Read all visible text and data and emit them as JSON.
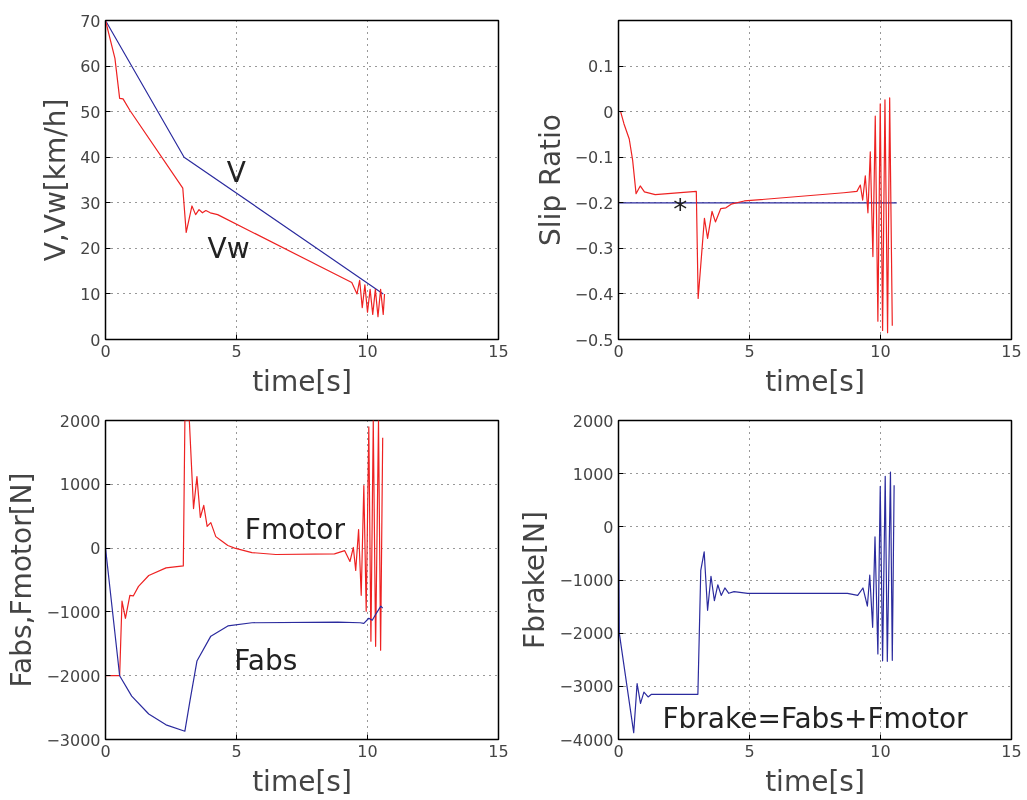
{
  "chart_data": [
    {
      "type": "line",
      "xlabel": "time[s]",
      "ylabel": "V,Vw[km/h]",
      "xlim": [
        0,
        15
      ],
      "xticks": [
        0,
        5,
        10,
        15
      ],
      "ylim": [
        0,
        70
      ],
      "yticks": [
        0,
        10,
        20,
        30,
        40,
        50,
        60,
        70
      ],
      "grid": true,
      "series": [
        {
          "name": "V",
          "color": "#2b2b9e",
          "x": [
            0,
            3,
            10.6
          ],
          "values": [
            70,
            40,
            10
          ]
        },
        {
          "name": "Vw",
          "color": "#ee2222",
          "x": [
            0,
            0.36,
            0.54,
            0.67,
            0.94,
            2.95,
            3.08,
            3.3,
            3.44,
            3.57,
            3.7,
            3.83,
            4.0,
            4.28,
            9.4,
            9.6,
            9.7,
            9.8,
            9.9,
            10.0,
            10.1,
            10.2,
            10.3,
            10.4,
            10.5,
            10.6,
            10.65
          ],
          "values": [
            70,
            61.7,
            52.9,
            52.8,
            50.2,
            33.2,
            23.5,
            29.3,
            27.4,
            28.5,
            27.8,
            28.3,
            27.8,
            27.4,
            12.5,
            10,
            13,
            7,
            12,
            6,
            11,
            5.5,
            11,
            5,
            11,
            5.5,
            10
          ]
        }
      ]
    },
    {
      "type": "line",
      "xlabel": "time[s]",
      "ylabel": "Slip Ratio",
      "xlim": [
        0,
        15
      ],
      "xticks": [
        0,
        5,
        10,
        15
      ],
      "ylim": [
        -0.5,
        0.2
      ],
      "yticks": [
        -0.5,
        -0.4,
        -0.3,
        -0.2,
        -0.1,
        0,
        0.1
      ],
      "grid": true,
      "series": [
        {
          "color": "#2b2b9e",
          "x": [
            0,
            10.62
          ],
          "values": [
            -0.2,
            -0.2
          ]
        },
        {
          "color": "#ee2222",
          "x": [
            0.08,
            0.21,
            0.41,
            0.54,
            0.67,
            0.83,
            0.99,
            1.4,
            2.97,
            3.04,
            3.28,
            3.4,
            3.57,
            3.7,
            3.9,
            4.1,
            4.3,
            4.8,
            8.6,
            9.1,
            9.23,
            9.32,
            9.42,
            9.52,
            9.61,
            9.71,
            9.8,
            9.9,
            9.99,
            10.08,
            10.17,
            10.27,
            10.35,
            10.45
          ],
          "values": [
            0,
            -0.027,
            -0.06,
            -0.107,
            -0.18,
            -0.163,
            -0.176,
            -0.182,
            -0.175,
            -0.41,
            -0.234,
            -0.278,
            -0.219,
            -0.242,
            -0.213,
            -0.211,
            -0.203,
            -0.196,
            -0.178,
            -0.175,
            -0.161,
            -0.194,
            -0.141,
            -0.222,
            -0.088,
            -0.318,
            -0.01,
            -0.46,
            0.017,
            -0.48,
            0.026,
            -0.485,
            0.03,
            -0.47
          ]
        }
      ],
      "annotations": [
        "*"
      ]
    },
    {
      "type": "line",
      "xlabel": "time[s]",
      "ylabel": "Fabs,Fmotor[N]",
      "xlim": [
        0,
        15
      ],
      "xticks": [
        0,
        5,
        10,
        15
      ],
      "ylim": [
        -3000,
        2000
      ],
      "yticks": [
        -3000,
        -2000,
        -1000,
        0,
        1000,
        2000
      ],
      "grid": true,
      "series": [
        {
          "name": "Fmotor",
          "color": "#ee2222",
          "x": [
            0,
            0.54,
            0.63,
            0.76,
            0.93,
            1.06,
            1.26,
            1.65,
            2.31,
            2.97,
            3.03,
            3.2,
            3.36,
            3.49,
            3.62,
            3.75,
            3.88,
            4.02,
            4.21,
            4.41,
            4.67,
            4.93,
            5.59,
            6.5,
            8.74,
            9.13,
            9.33,
            9.46,
            9.55,
            9.66,
            9.76,
            9.86,
            9.95,
            10.05,
            10.13,
            10.22,
            10.31,
            10.42,
            10.5,
            10.58
          ],
          "values": [
            -2000,
            -2000,
            -830,
            -1100,
            -740,
            -750,
            -600,
            -430,
            -310,
            -280,
            2000,
            2000,
            620,
            1120,
            480,
            670,
            340,
            400,
            180,
            120,
            40,
            0,
            -70,
            -100,
            -90,
            -40,
            -210,
            10,
            -350,
            290,
            -740,
            980,
            -990,
            1900,
            -1460,
            2000,
            -1540,
            2000,
            -1600,
            1730
          ]
        },
        {
          "name": "Fabs",
          "color": "#2b2b9e",
          "x": [
            0,
            0.54,
            1.0,
            1.65,
            2.31,
            3.03,
            3.23,
            3.49,
            4.02,
            4.67,
            5.59,
            8.87,
            9.72,
            9.86,
            10.05,
            10.18,
            10.31,
            10.51,
            10.58
          ],
          "values": [
            0,
            -2000,
            -2320,
            -2600,
            -2770,
            -2870,
            -2380,
            -1770,
            -1380,
            -1220,
            -1170,
            -1160,
            -1170,
            -1180,
            -1100,
            -1130,
            -1040,
            -910,
            -940
          ]
        }
      ]
    },
    {
      "type": "line",
      "xlabel": "time[s]",
      "ylabel": "Fbrake[N]",
      "xlim": [
        0,
        15
      ],
      "xticks": [
        0,
        5,
        10,
        15
      ],
      "ylim": [
        -4000,
        2000
      ],
      "yticks": [
        -4000,
        -3000,
        -2000,
        -1000,
        0,
        1000,
        2000
      ],
      "grid": true,
      "series": [
        {
          "color": "#2b2b9e",
          "x": [
            0,
            0.03,
            0.58,
            0.71,
            0.84,
            0.97,
            1.13,
            1.26,
            3.03,
            3.14,
            3.27,
            3.4,
            3.53,
            3.66,
            3.79,
            3.92,
            4.06,
            4.21,
            4.41,
            4.93,
            8.74,
            9.13,
            9.33,
            9.5,
            9.59,
            9.7,
            9.79,
            9.9,
            9.99,
            10.08,
            10.18,
            10.26,
            10.38,
            10.45,
            10.52
          ],
          "values": [
            0,
            -2000,
            -3870,
            -2950,
            -3320,
            -3110,
            -3200,
            -3150,
            -3150,
            -820,
            -470,
            -1570,
            -930,
            -1390,
            -1090,
            -1290,
            -1150,
            -1250,
            -1220,
            -1250,
            -1250,
            -1290,
            -1150,
            -1490,
            -910,
            -1890,
            -190,
            -2390,
            760,
            -2520,
            950,
            -2530,
            1030,
            -2510,
            780
          ]
        }
      ],
      "annotations": [
        "Fbrake=Fabs+Fmotor"
      ]
    }
  ]
}
